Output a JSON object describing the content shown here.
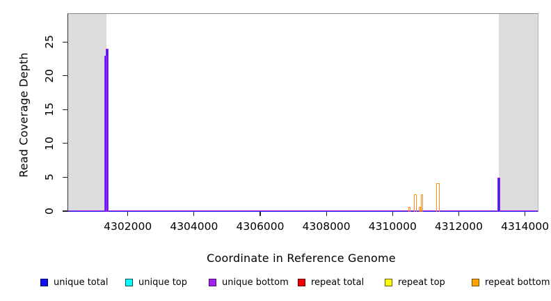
{
  "chart_data": {
    "type": "line",
    "title": "",
    "xlabel": "Coordinate in Reference Genome",
    "ylabel": "Read Coverage Depth",
    "x_ticks": [
      4302000,
      4304000,
      4306000,
      4308000,
      4310000,
      4312000,
      4314000
    ],
    "y_ticks": [
      0,
      5,
      10,
      15,
      20,
      25
    ],
    "xlim": [
      4300170,
      4314430
    ],
    "ylim": [
      0,
      29.2
    ],
    "grid": false,
    "legend_position": "bottom",
    "masked_region_color": "#dcdcdc",
    "masked_regions": [
      {
        "start": 4300170,
        "end": 4301350
      },
      {
        "start": 4313190,
        "end": 4314430
      }
    ],
    "baseline_depth": 0,
    "baseline_colors": [
      "#a020f0",
      "#2a2ae6"
    ],
    "series": [
      {
        "name": "unique total",
        "color": "#0f0fef",
        "bar_color": "#2a2ae6",
        "peaks": [
          {
            "x": 4301325,
            "depth": 23,
            "width_bp": 45
          },
          {
            "x": 4301365,
            "depth": 24,
            "width_bp": 50
          },
          {
            "x": 4313200,
            "depth": 5,
            "width_bp": 45
          }
        ]
      },
      {
        "name": "unique top",
        "color": "#00ffff",
        "bar_color": "#00ffff",
        "peaks": []
      },
      {
        "name": "unique bottom",
        "color": "#a020f0",
        "bar_color": "#a020f0",
        "peaks": [
          {
            "x": 4301325,
            "depth": 23,
            "width_bp": 90
          },
          {
            "x": 4301365,
            "depth": 24,
            "width_bp": 95
          },
          {
            "x": 4313200,
            "depth": 5,
            "width_bp": 85
          }
        ]
      },
      {
        "name": "repeat total",
        "color": "#ee0000",
        "bar_color": "#ee0000",
        "peaks": []
      },
      {
        "name": "repeat top",
        "color": "#ffff00",
        "bar_color": "#ffff00",
        "peaks": []
      },
      {
        "name": "repeat bottom",
        "color": "#ffa500",
        "bar_color": "#ff8c1a",
        "peaks": [
          {
            "x": 4310500,
            "depth": 0.7,
            "width_bp": 70
          },
          {
            "x": 4310670,
            "depth": 2.5,
            "width_bp": 80
          },
          {
            "x": 4310815,
            "depth": 0.7,
            "width_bp": 55
          },
          {
            "x": 4310875,
            "depth": 2.5,
            "width_bp": 75
          },
          {
            "x": 4311370,
            "depth": 4.2,
            "width_bp": 105
          }
        ]
      }
    ]
  },
  "legend": {
    "items": [
      {
        "label": "unique total",
        "color": "#0f0fef",
        "border": "#000060"
      },
      {
        "label": "unique top",
        "color": "#00ffff",
        "border": "#004f4f"
      },
      {
        "label": "unique bottom",
        "color": "#a020f0",
        "border": "#4b0f70"
      },
      {
        "label": "repeat total",
        "color": "#ee0000",
        "border": "#600000"
      },
      {
        "label": "repeat top",
        "color": "#ffff00",
        "border": "#606000"
      },
      {
        "label": "repeat bottom",
        "color": "#ffa500",
        "border": "#7a4b00"
      }
    ]
  }
}
